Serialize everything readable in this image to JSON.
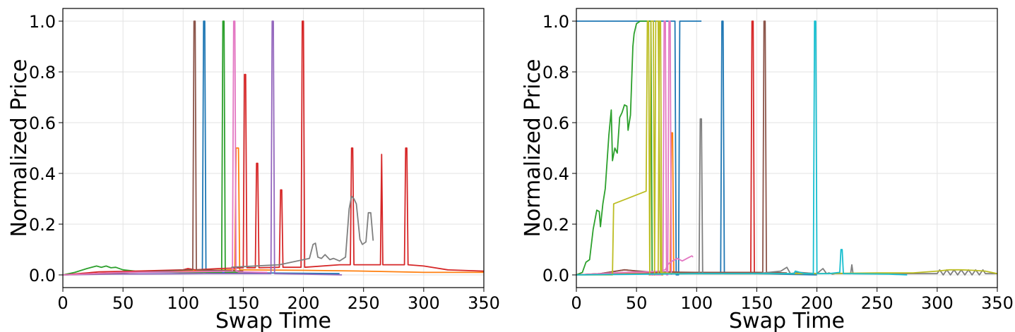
{
  "chart_data": [
    {
      "type": "line",
      "xlabel": "Swap Time",
      "ylabel": "Normalized Price",
      "xlim": [
        0,
        350
      ],
      "ylim": [
        -0.05,
        1.05
      ],
      "xticks": [
        "0",
        "50",
        "100",
        "150",
        "200",
        "250",
        "300",
        "350"
      ],
      "yticks": [
        "0.0",
        "0.2",
        "0.4",
        "0.6",
        "0.8",
        "1.0"
      ],
      "grid": true,
      "series": [
        {
          "color": "#1f77b4",
          "x": [
            0,
            60,
            116,
            117,
            118,
            119,
            160,
            230
          ],
          "y": [
            0.0,
            0.01,
            0.01,
            1.0,
            1.0,
            0.01,
            0.008,
            0.005
          ]
        },
        {
          "color": "#ff7f0e",
          "x": [
            0,
            50,
            100,
            140,
            143,
            144,
            146,
            147,
            200,
            250,
            300,
            350
          ],
          "y": [
            0.0,
            0.01,
            0.015,
            0.02,
            0.02,
            0.5,
            0.5,
            0.02,
            0.018,
            0.015,
            0.01,
            0.01
          ]
        },
        {
          "color": "#2ca02c",
          "x": [
            0,
            10,
            20,
            28,
            32,
            36,
            40,
            44,
            50,
            60,
            80,
            100,
            132,
            133,
            134,
            135,
            150
          ],
          "y": [
            0.0,
            0.01,
            0.025,
            0.035,
            0.03,
            0.035,
            0.028,
            0.03,
            0.02,
            0.015,
            0.012,
            0.01,
            0.01,
            1.0,
            1.0,
            0.01,
            0.01
          ]
        },
        {
          "color": "#d62728",
          "x": [
            0,
            30,
            60,
            100,
            104,
            110,
            130,
            150,
            151,
            152,
            153,
            160,
            161,
            162,
            163,
            180,
            181,
            182,
            183,
            198,
            199,
            200,
            201,
            230,
            239,
            240,
            241,
            242,
            262,
            264,
            265,
            266,
            280,
            284,
            285,
            286,
            287,
            300,
            320,
            350
          ],
          "y": [
            0.0,
            0.012,
            0.015,
            0.02,
            0.025,
            0.02,
            0.025,
            0.028,
            0.79,
            0.79,
            0.028,
            0.028,
            0.44,
            0.44,
            0.028,
            0.03,
            0.335,
            0.335,
            0.03,
            0.03,
            1.0,
            1.0,
            0.03,
            0.04,
            0.04,
            0.5,
            0.5,
            0.04,
            0.04,
            0.04,
            0.475,
            0.04,
            0.04,
            0.04,
            0.5,
            0.5,
            0.04,
            0.035,
            0.02,
            0.015
          ]
        },
        {
          "color": "#9467bd",
          "x": [
            0,
            40,
            80,
            120,
            173,
            174,
            175,
            176,
            200,
            232
          ],
          "y": [
            0.0,
            0.003,
            0.004,
            0.005,
            0.005,
            1.0,
            1.0,
            0.005,
            0.003,
            0.0
          ]
        },
        {
          "color": "#8c564b",
          "x": [
            0,
            60,
            105,
            108,
            109,
            110,
            111,
            150
          ],
          "y": [
            0.0,
            0.01,
            0.02,
            0.02,
            1.0,
            1.0,
            0.02,
            0.015
          ]
        },
        {
          "color": "#e377c2",
          "x": [
            0,
            50,
            100,
            141,
            142,
            143,
            144,
            146,
            170
          ],
          "y": [
            0.0,
            0.01,
            0.012,
            0.015,
            1.0,
            1.0,
            0.015,
            0.012,
            0.01
          ]
        },
        {
          "color": "#7f7f7f",
          "x": [
            140,
            180,
            200,
            205,
            208,
            210,
            212,
            215,
            218,
            222,
            225,
            230,
            235,
            238,
            240,
            242,
            244,
            247,
            249,
            252,
            254,
            256,
            258
          ],
          "y": [
            0.03,
            0.04,
            0.06,
            0.065,
            0.12,
            0.125,
            0.07,
            0.065,
            0.08,
            0.06,
            0.065,
            0.055,
            0.07,
            0.26,
            0.31,
            0.3,
            0.28,
            0.14,
            0.12,
            0.13,
            0.245,
            0.245,
            0.135
          ]
        }
      ]
    },
    {
      "type": "line",
      "xlabel": "Swap Time",
      "ylabel": "Normalized Price",
      "xlim": [
        0,
        350
      ],
      "ylim": [
        -0.05,
        1.05
      ],
      "xticks": [
        "0",
        "50",
        "100",
        "150",
        "200",
        "250",
        "300",
        "350"
      ],
      "yticks": [
        "0.0",
        "0.2",
        "0.4",
        "0.6",
        "0.8",
        "1.0"
      ],
      "grid": true,
      "series": [
        {
          "color": "#1f77b4",
          "x": [
            0,
            82,
            83,
            84,
            85,
            86,
            104
          ],
          "y": [
            1.0,
            1.0,
            0.0,
            0.0,
            0.0,
            1.0,
            1.0
          ]
        },
        {
          "color": "#1f77b4",
          "x": [
            0,
            60,
            120,
            121,
            122,
            123,
            150,
            200
          ],
          "y": [
            0.0,
            0.005,
            0.005,
            1.0,
            1.0,
            0.005,
            0.005,
            0.0
          ]
        },
        {
          "color": "#ff7f0e",
          "x": [
            0,
            60,
            78,
            79,
            80,
            81,
            100
          ],
          "y": [
            0.0,
            0.008,
            0.01,
            0.56,
            0.56,
            0.01,
            0.005
          ]
        },
        {
          "color": "#2ca02c",
          "x": [
            0,
            5,
            8,
            11,
            14,
            17,
            19,
            20,
            22,
            24,
            27,
            29,
            30,
            32,
            34,
            36,
            38,
            40,
            42,
            43,
            45,
            47,
            48,
            50,
            53,
            56,
            60,
            62,
            63,
            64
          ],
          "y": [
            0.0,
            0.01,
            0.05,
            0.06,
            0.18,
            0.255,
            0.25,
            0.19,
            0.28,
            0.34,
            0.55,
            0.65,
            0.45,
            0.5,
            0.48,
            0.62,
            0.64,
            0.67,
            0.665,
            0.57,
            0.63,
            0.9,
            0.95,
            0.99,
            1.0,
            1.0,
            1.0,
            1.0,
            0.0,
            0.0
          ]
        },
        {
          "color": "#d62728",
          "x": [
            0,
            20,
            40,
            60,
            80,
            100,
            130,
            145,
            146,
            147,
            148,
            149,
            170
          ],
          "y": [
            0.0,
            0.005,
            0.02,
            0.01,
            0.012,
            0.005,
            0.005,
            0.005,
            1.0,
            1.0,
            0.005,
            0.005,
            0.005
          ]
        },
        {
          "color": "#8c564b",
          "x": [
            0,
            20,
            40,
            60,
            100,
            155,
            156,
            157,
            158,
            175
          ],
          "y": [
            0.0,
            0.005,
            0.02,
            0.012,
            0.01,
            0.01,
            1.0,
            1.0,
            0.01,
            0.008
          ]
        },
        {
          "color": "#e377c2",
          "x": [
            0,
            40,
            60,
            70,
            74,
            76,
            78,
            80,
            82,
            84,
            86,
            88,
            90,
            92,
            94,
            96,
            97
          ],
          "y": [
            0.0,
            0.01,
            0.012,
            0.015,
            0.02,
            0.04,
            0.05,
            0.055,
            0.06,
            0.065,
            0.06,
            0.055,
            0.06,
            0.065,
            0.07,
            0.075,
            0.07
          ]
        },
        {
          "color": "#e377c2",
          "x": [
            60,
            72,
            73,
            74,
            75,
            76,
            77,
            78,
            79
          ],
          "y": [
            0.0,
            0.0,
            1.0,
            1.0,
            0.0,
            0.0,
            1.0,
            1.0,
            0.0
          ]
        },
        {
          "color": "#7f7f7f",
          "x": [
            0,
            60,
            100,
            102,
            103,
            104,
            105,
            150,
            160,
            170,
            175,
            178,
            185,
            200,
            205,
            208,
            210,
            213,
            215,
            222,
            228,
            229,
            230,
            240,
            260,
            300,
            302,
            305,
            308,
            311,
            314,
            317,
            320,
            323,
            326,
            329,
            332,
            335,
            338,
            340,
            350
          ],
          "y": [
            0.0,
            0.005,
            0.005,
            0.005,
            0.615,
            0.615,
            0.005,
            0.005,
            0.01,
            0.015,
            0.03,
            0.005,
            0.01,
            0.005,
            0.025,
            0.005,
            0.008,
            0.003,
            0.005,
            0.005,
            0.005,
            0.04,
            0.005,
            0.005,
            0.005,
            0.005,
            0.02,
            0.0,
            0.02,
            0.0,
            0.02,
            0.0,
            0.02,
            0.0,
            0.02,
            0.0,
            0.02,
            0.0,
            0.02,
            0.005,
            0.005
          ]
        },
        {
          "color": "#bcbd22",
          "x": [
            0,
            20,
            30,
            31,
            58,
            59,
            60,
            61,
            62,
            64,
            65,
            66,
            68,
            70,
            80,
            100,
            150,
            200,
            250,
            280,
            300,
            310,
            320,
            330,
            340,
            350
          ],
          "y": [
            0.0,
            0.0,
            0.0,
            0.28,
            0.33,
            1.0,
            1.0,
            0.0,
            1.0,
            1.0,
            0.0,
            1.0,
            1.0,
            0.01,
            0.005,
            0.005,
            0.005,
            0.005,
            0.008,
            0.008,
            0.015,
            0.02,
            0.02,
            0.018,
            0.015,
            0.005
          ]
        },
        {
          "color": "#bcbd22",
          "x": [
            68,
            69,
            70,
            71,
            72
          ],
          "y": [
            0.0,
            1.0,
            1.0,
            0.0,
            0.0
          ]
        },
        {
          "color": "#17becf",
          "x": [
            0,
            100,
            150,
            181,
            182,
            190,
            197,
            198,
            199,
            200,
            210,
            219,
            220,
            221,
            222,
            224,
            260,
            275
          ],
          "y": [
            0.0,
            0.005,
            0.005,
            0.005,
            0.015,
            0.005,
            0.005,
            1.0,
            1.0,
            0.005,
            0.005,
            0.01,
            0.1,
            0.1,
            0.005,
            0.005,
            0.003,
            0.0
          ]
        }
      ]
    }
  ]
}
